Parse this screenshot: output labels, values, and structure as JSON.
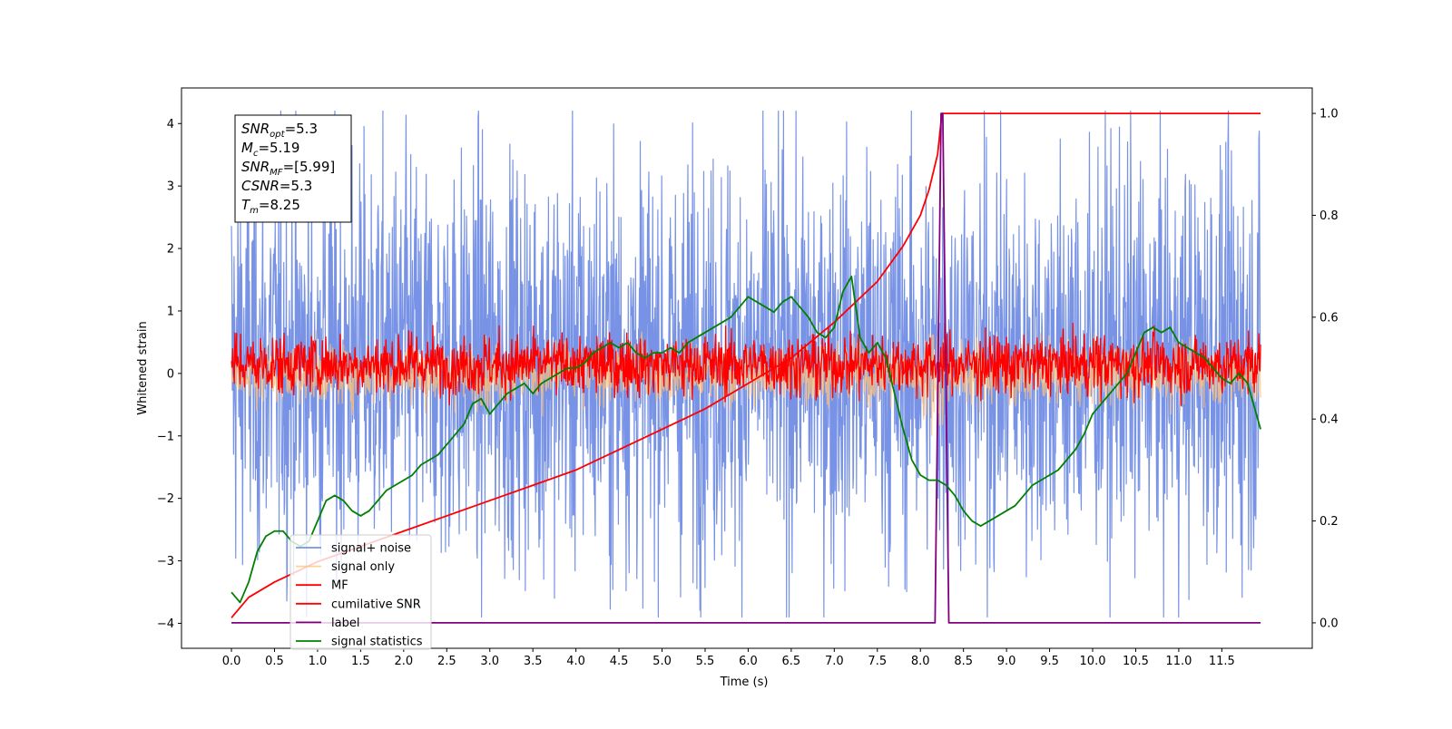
{
  "chart_data": {
    "type": "line",
    "xlabel": "Time (s)",
    "ylabel": "Whitened strain",
    "xlim": [
      -0.58,
      12.55
    ],
    "ylim": [
      -4.4,
      4.57
    ],
    "y2lim": [
      -0.05,
      1.05
    ],
    "x_ticks": [
      "0.0",
      "0.5",
      "1.0",
      "1.5",
      "2.0",
      "2.5",
      "3.0",
      "3.5",
      "4.0",
      "4.5",
      "5.0",
      "5.5",
      "6.0",
      "6.5",
      "7.0",
      "7.5",
      "8.0",
      "8.5",
      "9.0",
      "9.5",
      "10.0",
      "10.5",
      "11.0",
      "11.5"
    ],
    "y_ticks": [
      "4",
      "3",
      "2",
      "1",
      "0",
      "−1",
      "−2",
      "−3",
      "−4"
    ],
    "y2_ticks": [
      "1.0",
      "0.8",
      "0.6",
      "0.4",
      "0.2",
      "0.0"
    ],
    "legend": {
      "position": "lower-left",
      "entries": [
        {
          "label": "signal+ noise",
          "color": "#7893e6"
        },
        {
          "label": "signal only",
          "color": "#ffc078"
        },
        {
          "label": "MF",
          "color": "#ff0000"
        },
        {
          "label": "cumilative SNR",
          "color": "#ff0000"
        },
        {
          "label": "label",
          "color": "#800080"
        },
        {
          "label": "signal statistics",
          "color": "#008000"
        }
      ]
    },
    "stats_box": [
      {
        "sym": "SNR",
        "sub": "opt",
        "rest": "=5.3"
      },
      {
        "sym": "M",
        "sub": "c",
        "rest": "=5.19"
      },
      {
        "sym": "SNR",
        "sub": "MF",
        "rest": "=[5.99]"
      },
      {
        "sym": "CSNR",
        "sub": "",
        "rest": "=5.3"
      },
      {
        "sym": "T",
        "sub": "m",
        "rest": "=8.25"
      }
    ],
    "series": [
      {
        "name": "signal+ noise",
        "axis": "left",
        "color": "#7893e6",
        "x_range": [
          0,
          11.95
        ],
        "approx_band": [
          -2.5,
          2.9
        ],
        "approx_extremes": [
          -3.9,
          4.2
        ]
      },
      {
        "name": "signal only",
        "axis": "left",
        "color": "#ffc078",
        "x_range": [
          0,
          11.95
        ],
        "approx_band": [
          -0.4,
          0.4
        ]
      },
      {
        "name": "MF",
        "axis": "left",
        "color": "#ff0000",
        "x_range": [
          0,
          11.95
        ],
        "approx_band": [
          -0.25,
          0.55
        ]
      },
      {
        "name": "cumilative SNR",
        "axis": "right",
        "color": "#ff0000",
        "x": [
          0,
          0.2,
          0.5,
          1.0,
          1.5,
          2.0,
          2.5,
          3.0,
          3.5,
          4.0,
          4.5,
          5.0,
          5.5,
          6.0,
          6.5,
          7.0,
          7.5,
          7.8,
          8.0,
          8.1,
          8.2,
          8.25,
          9.0,
          10.0,
          11.0,
          11.95
        ],
        "y": [
          0.01,
          0.05,
          0.08,
          0.12,
          0.15,
          0.18,
          0.21,
          0.24,
          0.27,
          0.3,
          0.34,
          0.38,
          0.42,
          0.47,
          0.52,
          0.59,
          0.67,
          0.74,
          0.8,
          0.85,
          0.92,
          1.0,
          1.0,
          1.0,
          1.0,
          1.0
        ]
      },
      {
        "name": "label",
        "axis": "right",
        "color": "#800080",
        "x": [
          0,
          8.17,
          8.24,
          8.26,
          8.33,
          11.95
        ],
        "y": [
          0,
          0,
          1,
          1,
          0,
          0
        ]
      },
      {
        "name": "signal statistics",
        "axis": "right",
        "color": "#008000",
        "x": [
          0,
          0.1,
          0.2,
          0.3,
          0.4,
          0.5,
          0.6,
          0.7,
          0.8,
          0.9,
          1.0,
          1.1,
          1.2,
          1.3,
          1.4,
          1.5,
          1.6,
          1.7,
          1.8,
          1.9,
          2.0,
          2.1,
          2.2,
          2.3,
          2.4,
          2.5,
          2.6,
          2.7,
          2.8,
          2.9,
          3.0,
          3.1,
          3.2,
          3.3,
          3.4,
          3.5,
          3.6,
          3.7,
          3.8,
          3.9,
          4.0,
          4.1,
          4.2,
          4.3,
          4.4,
          4.5,
          4.6,
          4.7,
          4.8,
          4.9,
          5.0,
          5.1,
          5.2,
          5.3,
          5.4,
          5.5,
          5.6,
          5.7,
          5.8,
          5.9,
          6.0,
          6.1,
          6.2,
          6.3,
          6.4,
          6.5,
          6.6,
          6.7,
          6.8,
          6.9,
          7.0,
          7.1,
          7.2,
          7.3,
          7.4,
          7.5,
          7.6,
          7.7,
          7.8,
          7.9,
          8.0,
          8.1,
          8.2,
          8.3,
          8.4,
          8.5,
          8.6,
          8.7,
          8.8,
          8.9,
          9.0,
          9.1,
          9.2,
          9.3,
          9.4,
          9.5,
          9.6,
          9.7,
          9.8,
          9.9,
          10.0,
          10.1,
          10.2,
          10.3,
          10.4,
          10.5,
          10.6,
          10.7,
          10.8,
          10.9,
          11.0,
          11.1,
          11.2,
          11.3,
          11.4,
          11.5,
          11.6,
          11.7,
          11.8,
          11.95
        ],
        "y": [
          0.06,
          0.04,
          0.08,
          0.14,
          0.17,
          0.18,
          0.18,
          0.16,
          0.15,
          0.16,
          0.2,
          0.24,
          0.25,
          0.24,
          0.22,
          0.21,
          0.22,
          0.24,
          0.26,
          0.27,
          0.28,
          0.29,
          0.31,
          0.32,
          0.33,
          0.35,
          0.37,
          0.39,
          0.43,
          0.44,
          0.41,
          0.43,
          0.45,
          0.46,
          0.47,
          0.45,
          0.47,
          0.48,
          0.49,
          0.5,
          0.5,
          0.51,
          0.53,
          0.54,
          0.55,
          0.54,
          0.55,
          0.53,
          0.52,
          0.53,
          0.53,
          0.54,
          0.53,
          0.55,
          0.56,
          0.57,
          0.58,
          0.59,
          0.6,
          0.62,
          0.64,
          0.63,
          0.62,
          0.61,
          0.63,
          0.64,
          0.62,
          0.6,
          0.57,
          0.56,
          0.58,
          0.65,
          0.68,
          0.56,
          0.53,
          0.55,
          0.52,
          0.45,
          0.38,
          0.32,
          0.29,
          0.28,
          0.28,
          0.27,
          0.25,
          0.22,
          0.2,
          0.19,
          0.2,
          0.21,
          0.22,
          0.23,
          0.25,
          0.27,
          0.28,
          0.29,
          0.3,
          0.32,
          0.34,
          0.37,
          0.41,
          0.43,
          0.45,
          0.47,
          0.49,
          0.53,
          0.57,
          0.58,
          0.57,
          0.58,
          0.55,
          0.54,
          0.53,
          0.52,
          0.5,
          0.48,
          0.47,
          0.49,
          0.47,
          0.38
        ]
      }
    ]
  }
}
